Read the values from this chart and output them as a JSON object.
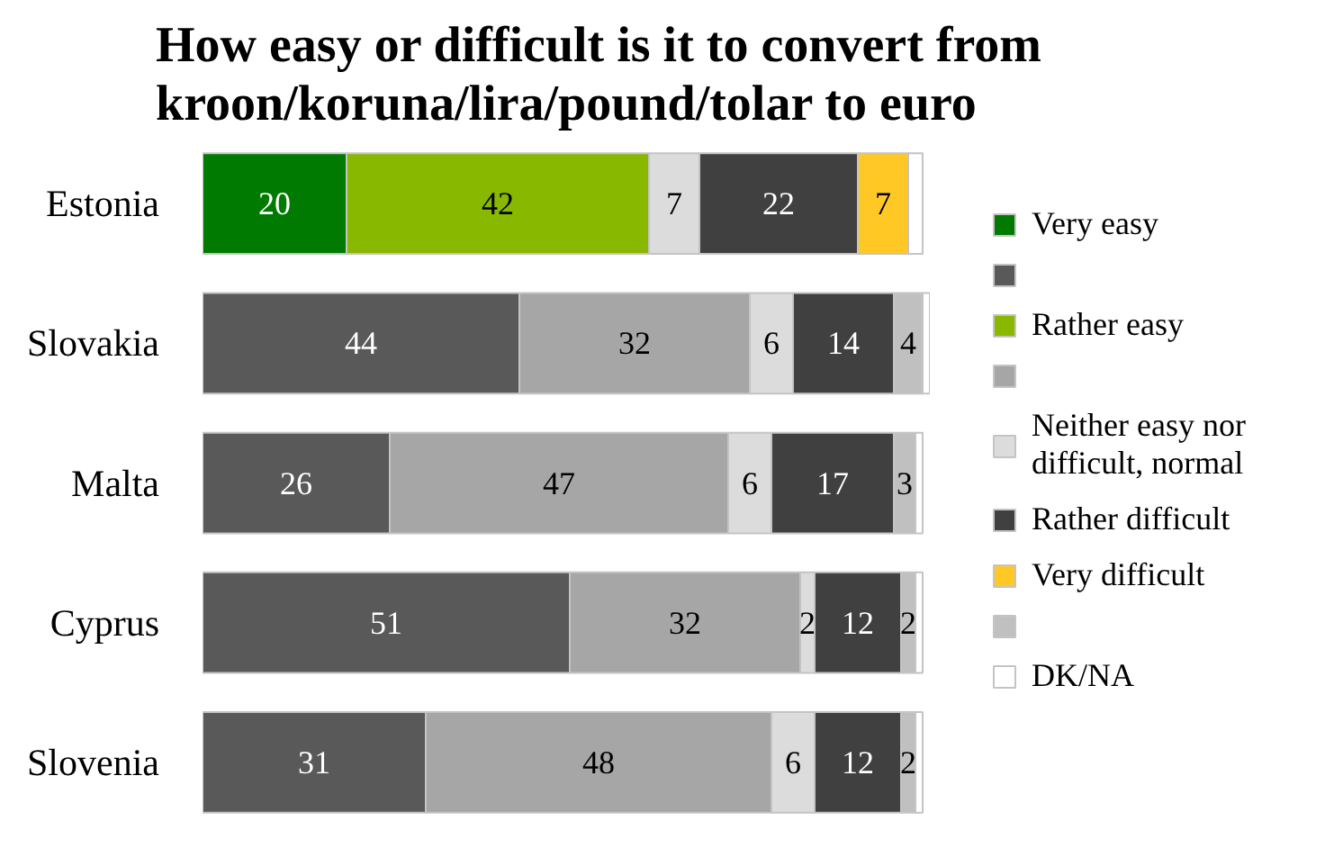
{
  "chart_data": {
    "type": "bar",
    "title": "How easy or difficult is it to convert from kroon/koruna/lira/pound/tolar to euro",
    "orientation": "horizontal",
    "stacked": true,
    "legend": "right",
    "tick_labels": "y",
    "xlim": [
      0,
      101
    ],
    "categories": [
      "Estonia",
      "Slovakia",
      "Malta",
      "Cyprus",
      "Slovenia"
    ],
    "series": [
      {
        "name": "Very easy",
        "colors": [
          "#007a00",
          "#595959",
          "#595959",
          "#595959",
          "#595959"
        ],
        "values": [
          20,
          44,
          26,
          51,
          31
        ],
        "value_labels": [
          "20",
          "44",
          "26",
          "51",
          "31"
        ]
      },
      {
        "name": "Rather easy",
        "colors": [
          "#88b800",
          "#a6a6a6",
          "#a6a6a6",
          "#a6a6a6",
          "#a6a6a6"
        ],
        "values": [
          42,
          32,
          47,
          32,
          48
        ],
        "value_labels": [
          "42",
          "32",
          "47",
          "32",
          "48"
        ]
      },
      {
        "name": "Neither easy nor difficult, normal",
        "color": "#dcdcdc",
        "values": [
          7,
          6,
          6,
          2,
          6
        ],
        "value_labels": [
          "7",
          "6",
          "6",
          "2",
          "6"
        ]
      },
      {
        "name": "Rather difficult",
        "color": "#404040",
        "values": [
          22,
          14,
          17,
          12,
          12
        ],
        "value_labels": [
          "22",
          "14",
          "17",
          "12",
          "12"
        ]
      },
      {
        "name": "Very difficult",
        "colors": [
          "#ffc825",
          "#c0c0c0",
          "#c0c0c0",
          "#c0c0c0",
          "#c0c0c0"
        ],
        "values": [
          7,
          4,
          3,
          2,
          2
        ],
        "value_labels": [
          "7",
          "4",
          "3",
          "2",
          "2"
        ]
      },
      {
        "name": "DK/NA",
        "color": "#ffffff",
        "values": [
          2,
          1,
          1,
          1,
          1
        ]
      }
    ]
  }
}
